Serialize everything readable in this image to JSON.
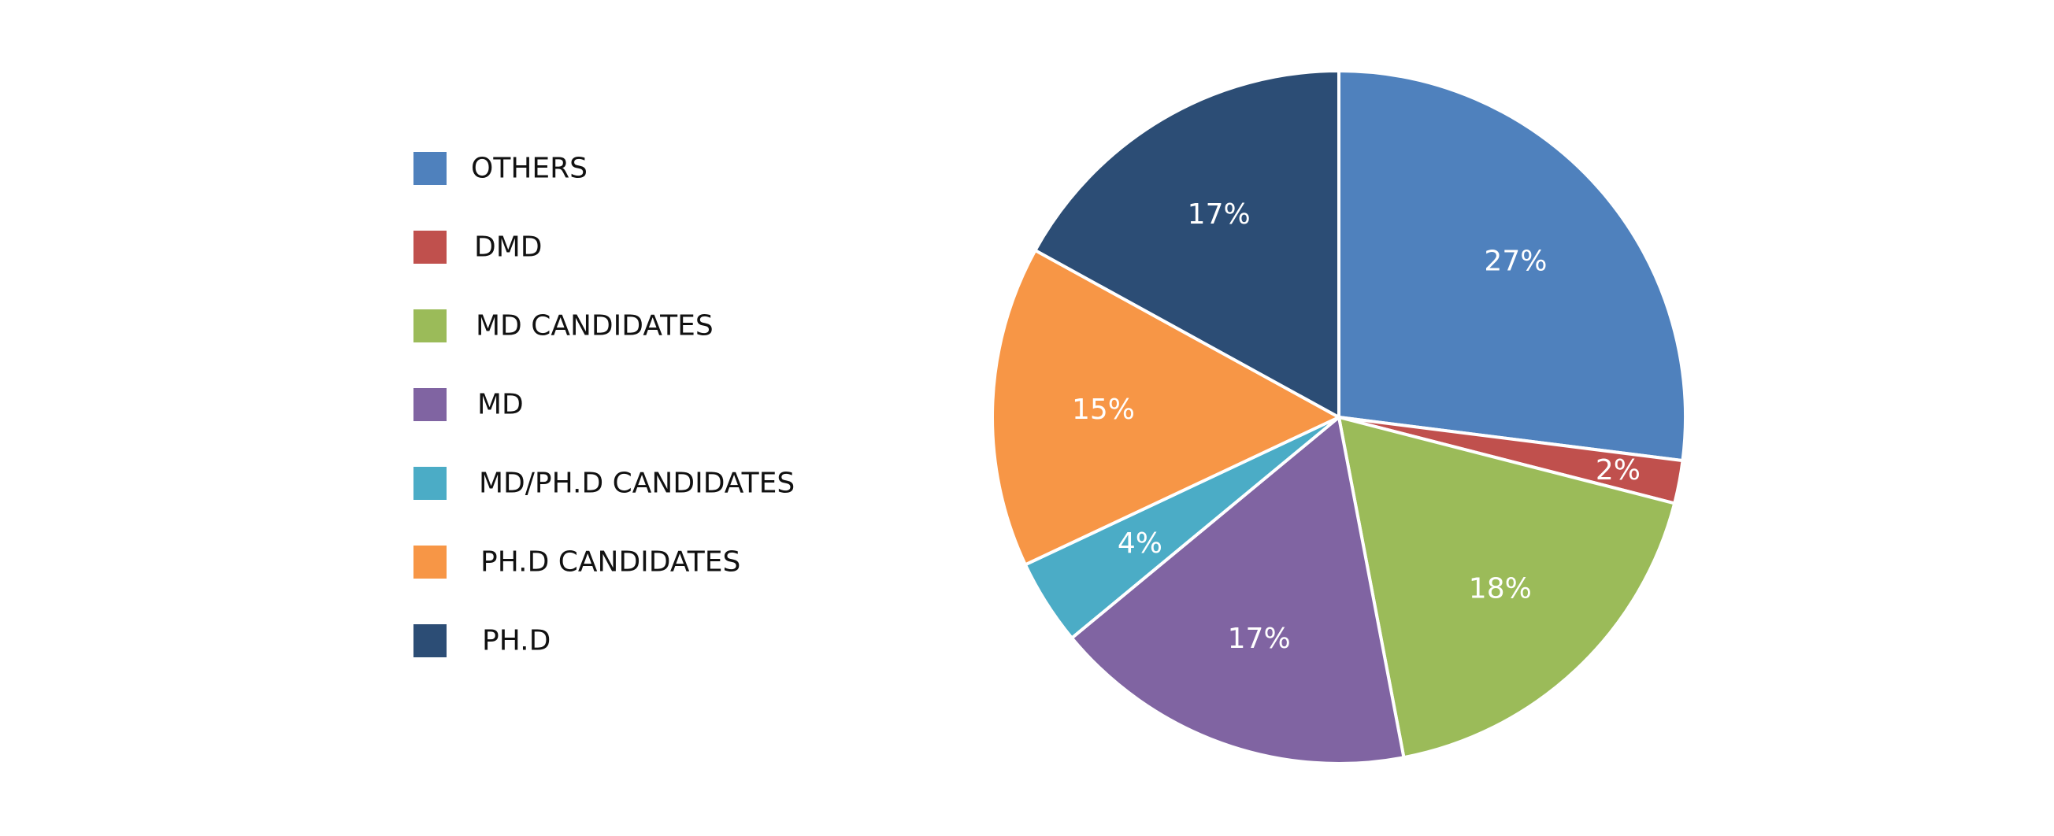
{
  "chart_data": {
    "type": "pie",
    "title": "",
    "start_angle_deg": 0,
    "direction": "clockwise",
    "legend_position": "left",
    "slices": [
      {
        "label": "OTHERS",
        "value": 27,
        "display": "27%",
        "color": "#4f81bd"
      },
      {
        "label": "DMD",
        "value": 2,
        "display": "2%",
        "color": "#c0504d"
      },
      {
        "label": "MD CANDIDATES",
        "value": 18,
        "display": "18%",
        "color": "#9bbb59"
      },
      {
        "label": "MD",
        "value": 17,
        "display": "17%",
        "color": "#8064a2"
      },
      {
        "label": "MD/PH.D CANDIDATES",
        "value": 4,
        "display": "4%",
        "color": "#4bacc6"
      },
      {
        "label": "PH.D CANDIDATES",
        "value": 15,
        "display": "15%",
        "color": "#f79646"
      },
      {
        "label": "PH.D",
        "value": 17,
        "display": "17%",
        "color": "#2c4d75"
      }
    ]
  }
}
